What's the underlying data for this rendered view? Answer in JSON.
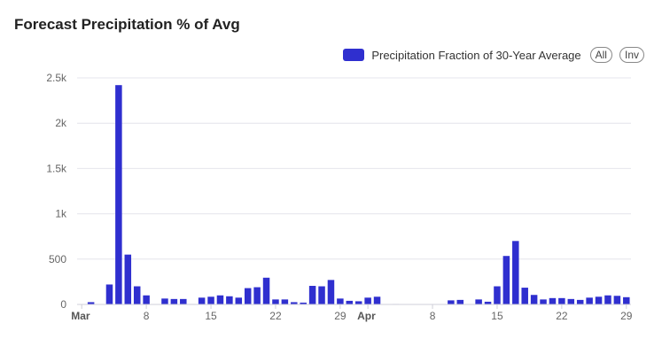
{
  "chart_data": {
    "type": "bar",
    "title": "Forecast Precipitation % of Avg",
    "series": [
      {
        "name": "Precipitation Fraction of 30-Year Average",
        "color": "#2f2fcf",
        "values": [
          0,
          25,
          0,
          220,
          2420,
          550,
          200,
          100,
          0,
          65,
          60,
          60,
          5,
          75,
          85,
          100,
          90,
          75,
          180,
          190,
          295,
          55,
          55,
          25,
          20,
          205,
          200,
          270,
          65,
          40,
          35,
          75,
          85,
          0,
          5,
          0,
          0,
          0,
          0,
          0,
          45,
          50,
          0,
          55,
          30,
          200,
          535,
          700,
          185,
          105,
          55,
          70,
          70,
          60,
          50,
          75,
          85,
          100,
          95,
          80
        ]
      }
    ],
    "x_start": "Mar 1",
    "x_ticks": [
      {
        "label": "Mar",
        "index": 0,
        "bold": true
      },
      {
        "label": "8",
        "index": 7,
        "bold": false
      },
      {
        "label": "15",
        "index": 14,
        "bold": false
      },
      {
        "label": "22",
        "index": 21,
        "bold": false
      },
      {
        "label": "29",
        "index": 28,
        "bold": false
      },
      {
        "label": "Apr",
        "index": 31,
        "bold": true
      },
      {
        "label": "8",
        "index": 38,
        "bold": false
      },
      {
        "label": "15",
        "index": 45,
        "bold": false
      },
      {
        "label": "22",
        "index": 52,
        "bold": false
      },
      {
        "label": "29",
        "index": 59,
        "bold": false
      }
    ],
    "y_ticks": [
      {
        "label": "0",
        "value": 0
      },
      {
        "label": "500",
        "value": 500
      },
      {
        "label": "1k",
        "value": 1000
      },
      {
        "label": "1.5k",
        "value": 1500
      },
      {
        "label": "2k",
        "value": 2000
      },
      {
        "label": "2.5k",
        "value": 2500
      }
    ],
    "ylim": [
      0,
      2500
    ],
    "grid": true,
    "legend_position": "top-right"
  },
  "legend": {
    "label": "Precipitation Fraction of 30-Year Average",
    "all_label": "All",
    "inv_label": "Inv"
  }
}
